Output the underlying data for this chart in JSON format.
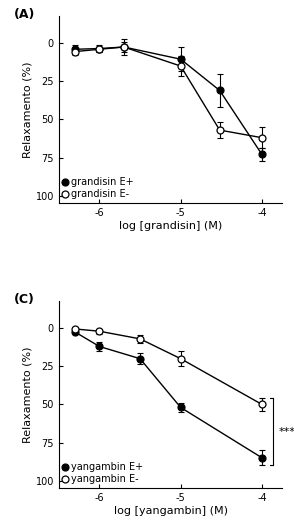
{
  "panel_A": {
    "label": "(A)",
    "xlabel": "log [grandisin] (M)",
    "ylabel": "Relaxamento (%)",
    "xlim": [
      -6.5,
      -3.75
    ],
    "ylim": [
      105,
      -18
    ],
    "xticks": [
      -6,
      -5,
      -4
    ],
    "xticklabels": [
      "-6",
      "-5",
      "-4"
    ],
    "yticks": [
      0,
      25,
      50,
      75,
      100
    ],
    "series": [
      {
        "name": "grandisin E+",
        "filled": true,
        "x": [
          -6.3,
          -6.0,
          -5.7,
          -5.0,
          -4.52,
          -4.0
        ],
        "y": [
          4.0,
          3.5,
          2.5,
          10.5,
          31.0,
          73.0
        ],
        "yerr": [
          2.5,
          2.5,
          5.5,
          8.0,
          11.0,
          4.5
        ]
      },
      {
        "name": "grandisin E-",
        "filled": false,
        "x": [
          -6.3,
          -6.0,
          -5.7,
          -5.0,
          -4.52,
          -4.0
        ],
        "y": [
          5.5,
          4.0,
          2.5,
          15.0,
          57.0,
          62.0
        ],
        "yerr": [
          2.0,
          1.5,
          3.5,
          6.5,
          5.5,
          7.0
        ]
      }
    ]
  },
  "panel_C": {
    "label": "(C)",
    "xlabel": "log [yangambin] (M)",
    "ylabel": "Relaxamento (%)",
    "xlim": [
      -6.5,
      -3.75
    ],
    "ylim": [
      105,
      -18
    ],
    "xticks": [
      -6,
      -5,
      -4
    ],
    "xticklabels": [
      "-6",
      "-5",
      "-4"
    ],
    "yticks": [
      0,
      25,
      50,
      75,
      100
    ],
    "significance": "***",
    "sig_x_line": -4.0,
    "sig_ep_y": 90.0,
    "sig_em_y": 46.0,
    "series": [
      {
        "name": "yangambin E+",
        "filled": true,
        "x": [
          -6.3,
          -6.0,
          -5.5,
          -5.0,
          -4.0
        ],
        "y": [
          2.5,
          12.0,
          20.0,
          52.0,
          85.0
        ],
        "yerr": [
          1.5,
          3.0,
          3.5,
          3.0,
          5.0
        ]
      },
      {
        "name": "yangambin E-",
        "filled": false,
        "x": [
          -6.3,
          -6.0,
          -5.5,
          -5.0,
          -4.0
        ],
        "y": [
          0.5,
          2.0,
          7.0,
          20.0,
          50.0
        ],
        "yerr": [
          1.0,
          1.5,
          2.5,
          5.0,
          4.0
        ]
      }
    ]
  },
  "background_color": "#ffffff",
  "font_size": 8,
  "tick_font_size": 7,
  "legend_font_size": 7,
  "marker_size": 5,
  "line_width": 1.0,
  "elinewidth": 0.8,
  "capsize": 2.0,
  "capthick": 0.8
}
